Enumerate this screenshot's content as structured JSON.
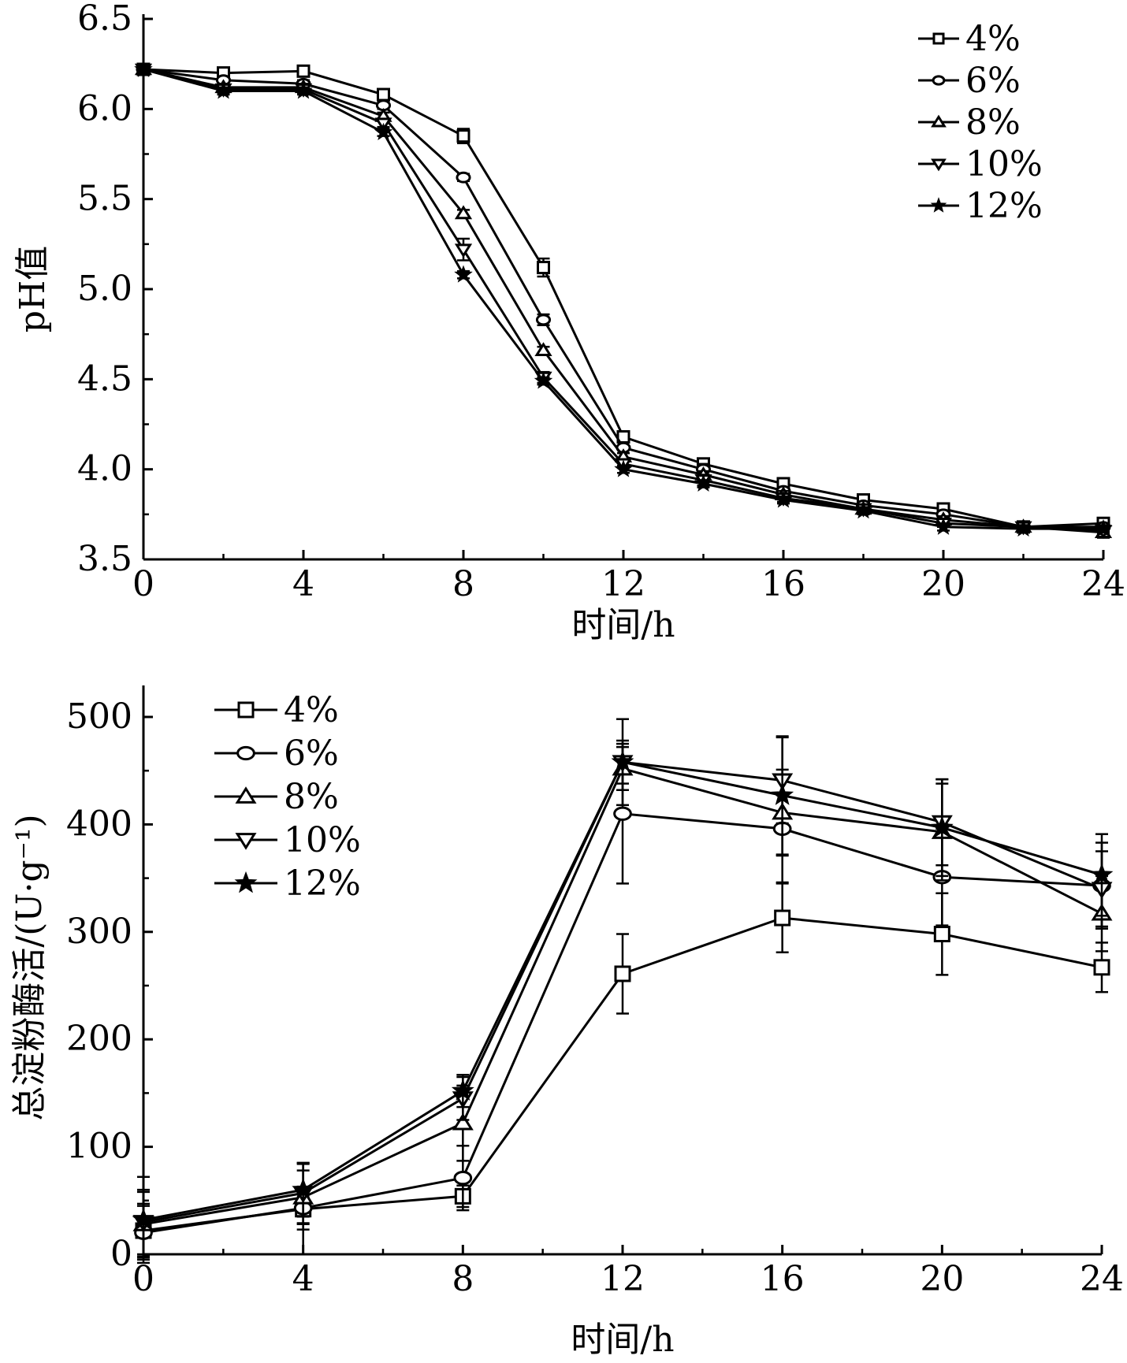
{
  "chart_data": [
    {
      "type": "line",
      "xlabel": "时间/h",
      "ylabel": "pH值",
      "xlim": [
        0,
        24
      ],
      "ylim": [
        3.5,
        6.5
      ],
      "x_ticks": [
        "0",
        "4",
        "8",
        "12",
        "16",
        "20",
        "24"
      ],
      "y_ticks": [
        "3.5",
        "4.0",
        "4.5",
        "5.0",
        "5.5",
        "6.0",
        "6.5"
      ],
      "legend_position": "top-right",
      "grid": false,
      "x": [
        0,
        2,
        4,
        6,
        8,
        10,
        12,
        14,
        16,
        18,
        20,
        22,
        24
      ],
      "series": [
        {
          "name": "4%",
          "marker": "square",
          "values": [
            6.22,
            6.2,
            6.21,
            6.08,
            5.85,
            5.12,
            4.18,
            4.03,
            3.92,
            3.83,
            3.78,
            3.68,
            3.7
          ],
          "errors": [
            0.02,
            0.02,
            0.02,
            0.02,
            0.04,
            0.05,
            0.03,
            0.02,
            0.02,
            0.02,
            0.02,
            0.02,
            0.02
          ]
        },
        {
          "name": "6%",
          "marker": "circle",
          "values": [
            6.22,
            6.16,
            6.14,
            6.02,
            5.62,
            4.83,
            4.12,
            4.0,
            3.88,
            3.8,
            3.75,
            3.68,
            3.68
          ],
          "errors": [
            0.02,
            0.02,
            0.02,
            0.02,
            0.02,
            0.03,
            0.03,
            0.03,
            0.02,
            0.02,
            0.02,
            0.02,
            0.02
          ]
        },
        {
          "name": "8%",
          "marker": "triangle-up",
          "values": [
            6.22,
            6.12,
            6.12,
            5.96,
            5.42,
            4.66,
            4.07,
            3.97,
            3.86,
            3.78,
            3.72,
            3.68,
            3.65
          ],
          "errors": [
            0.02,
            0.02,
            0.02,
            0.02,
            0.02,
            0.02,
            0.02,
            0.02,
            0.02,
            0.02,
            0.02,
            0.02,
            0.03
          ]
        },
        {
          "name": "10%",
          "marker": "triangle-down",
          "values": [
            6.22,
            6.11,
            6.11,
            5.92,
            5.22,
            4.51,
            4.03,
            3.94,
            3.84,
            3.78,
            3.7,
            3.68,
            3.66
          ],
          "errors": [
            0.02,
            0.02,
            0.02,
            0.02,
            0.06,
            0.03,
            0.02,
            0.03,
            0.02,
            0.02,
            0.02,
            0.02,
            0.02
          ]
        },
        {
          "name": "12%",
          "marker": "star",
          "values": [
            6.22,
            6.1,
            6.1,
            5.87,
            5.08,
            4.49,
            4.0,
            3.92,
            3.83,
            3.77,
            3.68,
            3.67,
            3.67
          ],
          "errors": [
            0.02,
            0.02,
            0.02,
            0.02,
            0.02,
            0.02,
            0.02,
            0.02,
            0.02,
            0.02,
            0.02,
            0.02,
            0.02
          ]
        }
      ]
    },
    {
      "type": "line",
      "xlabel": "时间/h",
      "ylabel": "总淀粉酶活/(U·g⁻¹)",
      "xlim": [
        0,
        24
      ],
      "ylim": [
        0,
        520
      ],
      "x_ticks": [
        "0",
        "4",
        "8",
        "12",
        "16",
        "20",
        "24"
      ],
      "y_ticks": [
        "0",
        "100",
        "200",
        "300",
        "400",
        "500"
      ],
      "legend_position": "top-left",
      "grid": false,
      "x": [
        0,
        4,
        8,
        12,
        16,
        20,
        24
      ],
      "series": [
        {
          "name": "4%",
          "marker": "square",
          "values": [
            22,
            42,
            54,
            261,
            313,
            298,
            267
          ],
          "errors": [
            25,
            42,
            10,
            37,
            32,
            38,
            23
          ]
        },
        {
          "name": "6%",
          "marker": "circle",
          "values": [
            20,
            43,
            71,
            410,
            396,
            351,
            343
          ],
          "errors": [
            25,
            20,
            30,
            65,
            50,
            45,
            40
          ]
        },
        {
          "name": "8%",
          "marker": "triangle-up",
          "values": [
            28,
            53,
            122,
            452,
            411,
            393,
            317
          ],
          "errors": [
            30,
            25,
            35,
            20,
            40,
            45,
            35
          ]
        },
        {
          "name": "10%",
          "marker": "triangle-down",
          "values": [
            30,
            57,
            145,
            458,
            441,
            402,
            340
          ],
          "errors": [
            30,
            28,
            20,
            20,
            40,
            40,
            35
          ]
        },
        {
          "name": "12%",
          "marker": "star",
          "values": [
            32,
            60,
            152,
            458,
            427,
            397,
            353
          ],
          "errors": [
            40,
            25,
            15,
            40,
            55,
            45,
            38
          ]
        }
      ]
    }
  ]
}
